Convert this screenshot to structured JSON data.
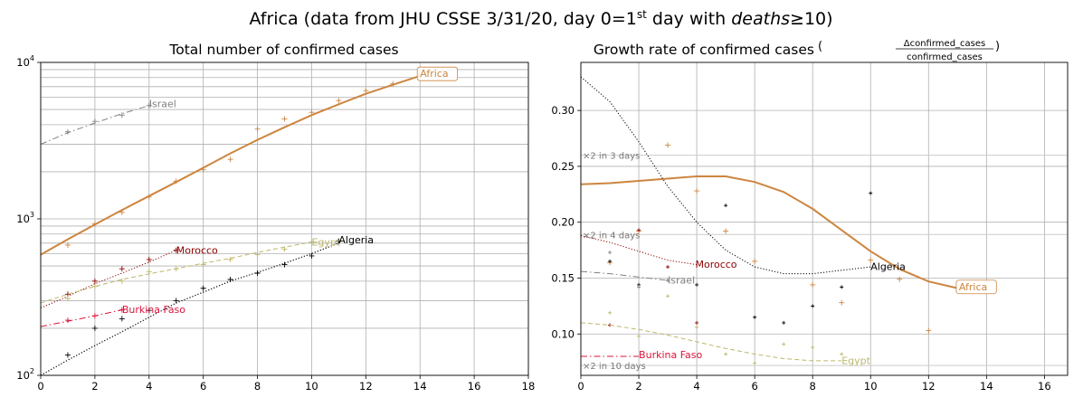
{
  "figure": {
    "suptitle_plain": "Africa (data from JHU CSSE 3/31/20, day 0=1",
    "suptitle_sup": "st",
    "suptitle_mid": " day with ",
    "suptitle_italic": "deaths",
    "suptitle_tail": "≥10)"
  },
  "colors": {
    "africa": "#cd853f",
    "algeria": "#000000",
    "egypt": "#bdb76b",
    "morocco": "#8b0000",
    "burkina": "#dc143c",
    "israel": "#808080",
    "grid": "#b0b0b0",
    "ref": "#cccccc"
  },
  "chart_data": [
    {
      "type": "line",
      "title": "Total number of confirmed cases",
      "yscale": "log",
      "xlim": [
        0,
        18
      ],
      "ylim": [
        100,
        10000
      ],
      "xticks": [
        0,
        2,
        4,
        6,
        8,
        10,
        12,
        14,
        16,
        18
      ],
      "ytick_labels": {
        "base": "10",
        "exps": [
          "2",
          "3",
          "4"
        ]
      },
      "series": [
        {
          "name": "Africa",
          "key": "africa",
          "style": "solid",
          "width": 2,
          "fit_x": [
            0,
            1,
            2,
            3,
            4,
            5,
            6,
            7,
            8,
            9,
            10,
            11,
            12,
            13,
            14
          ],
          "fit_y": [
            590,
            740,
            920,
            1140,
            1400,
            1720,
            2120,
            2620,
            3200,
            3850,
            4600,
            5400,
            6300,
            7200,
            8200
          ],
          "pts_x": [
            1,
            2,
            3,
            4,
            5,
            6,
            7,
            8,
            9,
            10,
            11,
            12,
            13,
            14
          ],
          "pts_y": [
            680,
            930,
            1100,
            1380,
            1740,
            2060,
            2400,
            3750,
            4350,
            4800,
            5700,
            6600,
            7300,
            8400
          ]
        },
        {
          "name": "Israel",
          "key": "israel",
          "style": "dashdot",
          "width": 1,
          "fit_x": [
            0,
            1,
            2,
            3,
            4
          ],
          "fit_y": [
            3000,
            3550,
            4100,
            4700,
            5300
          ],
          "pts_x": [
            1,
            2,
            3,
            4
          ],
          "pts_y": [
            3600,
            4200,
            4600,
            5300
          ]
        },
        {
          "name": "Morocco",
          "key": "morocco",
          "style": "dotted",
          "width": 1,
          "fit_x": [
            0,
            1,
            2,
            3,
            4,
            5
          ],
          "fit_y": [
            270,
            320,
            385,
            450,
            530,
            630
          ],
          "pts_x": [
            1,
            2,
            3,
            4,
            5
          ],
          "pts_y": [
            330,
            400,
            480,
            550,
            630
          ]
        },
        {
          "name": "Egypt",
          "key": "egypt",
          "style": "dashed",
          "width": 1,
          "fit_x": [
            0,
            1,
            2,
            3,
            4,
            5,
            6,
            7,
            8,
            9,
            10
          ],
          "fit_y": [
            290,
            330,
            370,
            410,
            445,
            480,
            520,
            560,
            610,
            660,
            710
          ],
          "pts_x": [
            1,
            2,
            3,
            4,
            5,
            6,
            7,
            8,
            9,
            10
          ],
          "pts_y": [
            310,
            370,
            400,
            460,
            480,
            510,
            550,
            590,
            640,
            710
          ]
        },
        {
          "name": "Algeria",
          "key": "algeria",
          "style": "dotted",
          "width": 1.2,
          "fit_x": [
            0,
            1,
            2,
            3,
            4,
            5,
            6,
            7,
            8,
            9,
            10,
            11
          ],
          "fit_y": [
            100,
            125,
            155,
            190,
            235,
            290,
            340,
            400,
            455,
            520,
            600,
            700
          ],
          "pts_x": [
            1,
            2,
            3,
            4,
            5,
            6,
            7,
            8,
            9,
            10,
            11
          ],
          "pts_y": [
            135,
            200,
            230,
            260,
            300,
            360,
            410,
            450,
            510,
            580,
            720
          ]
        },
        {
          "name": "Burkina Faso",
          "key": "burkina",
          "style": "dashdot",
          "width": 1,
          "fit_x": [
            0,
            1,
            2,
            3
          ],
          "fit_y": [
            205,
            222,
            240,
            262
          ],
          "pts_x": [
            1,
            2,
            3
          ],
          "pts_y": [
            225,
            240,
            262
          ]
        }
      ]
    },
    {
      "type": "line",
      "title_main": "Growth rate of confirmed cases",
      "title_frac_num": "Δconfirmed_cases",
      "title_frac_den": "confirmed_cases",
      "xlim": [
        0,
        16.8
      ],
      "ylim": [
        0.063,
        0.343
      ],
      "xticks": [
        0,
        2,
        4,
        6,
        8,
        10,
        12,
        14,
        16
      ],
      "yticks": [
        0.1,
        0.15,
        0.2,
        0.25,
        0.3
      ],
      "ytick_labels": [
        "0.10",
        "0.15",
        "0.20",
        "0.25",
        "0.30"
      ],
      "reference_lines": [
        {
          "label": "×2 in 3 days",
          "y": 0.26
        },
        {
          "label": "×2 in 4 days",
          "y": 0.189
        },
        {
          "label": "×2 in 10 days",
          "y": 0.0718
        }
      ],
      "series": [
        {
          "name": "Africa",
          "key": "africa",
          "style": "solid",
          "width": 2,
          "fit_x": [
            0,
            1,
            2,
            3,
            4,
            5,
            6,
            7,
            8,
            9,
            10,
            11,
            12,
            13
          ],
          "fit_y": [
            0.234,
            0.235,
            0.237,
            0.239,
            0.241,
            0.241,
            0.236,
            0.227,
            0.212,
            0.193,
            0.174,
            0.158,
            0.147,
            0.141
          ],
          "pts_x": [
            1,
            2,
            3,
            4,
            5,
            6,
            8,
            9,
            10,
            11,
            12
          ],
          "pts_y": [
            0.164,
            0.192,
            0.269,
            0.228,
            0.192,
            0.165,
            0.144,
            0.128,
            0.166,
            0.149,
            0.103
          ]
        },
        {
          "name": "Algeria",
          "key": "algeria",
          "style": "dotted",
          "width": 1,
          "fit_x": [
            0,
            1,
            2,
            3,
            4,
            5,
            6,
            7,
            8,
            9,
            10
          ],
          "fit_y": [
            0.33,
            0.308,
            0.272,
            0.232,
            0.2,
            0.175,
            0.16,
            0.154,
            0.154,
            0.157,
            0.16
          ],
          "pts_x": [
            1,
            2,
            3,
            4,
            5,
            6,
            7,
            8,
            9,
            10
          ],
          "pts_y": [
            0.165,
            0.144,
            0.148,
            0.144,
            0.215,
            0.115,
            0.11,
            0.125,
            0.142,
            0.226
          ]
        },
        {
          "name": "Morocco",
          "key": "morocco",
          "style": "dotted",
          "width": 1,
          "fit_x": [
            0,
            1,
            2,
            3,
            4
          ],
          "fit_y": [
            0.188,
            0.182,
            0.174,
            0.166,
            0.162
          ],
          "pts_x": [
            1,
            2,
            3,
            4
          ],
          "pts_y": [
            0.108,
            0.193,
            0.16,
            0.11
          ]
        },
        {
          "name": "Israel",
          "key": "israel",
          "style": "dashdot",
          "width": 1,
          "fit_x": [
            0,
            1,
            2,
            3
          ],
          "fit_y": [
            0.156,
            0.154,
            0.151,
            0.148
          ],
          "pts_x": [
            1,
            2,
            3
          ],
          "pts_y": [
            0.173,
            0.142,
            0.148
          ]
        },
        {
          "name": "Egypt",
          "key": "egypt",
          "style": "dashed",
          "width": 1,
          "fit_x": [
            0,
            1,
            2,
            3,
            4,
            5,
            6,
            7,
            8,
            9
          ],
          "fit_y": [
            0.11,
            0.108,
            0.104,
            0.099,
            0.093,
            0.087,
            0.082,
            0.078,
            0.076,
            0.076
          ],
          "pts_x": [
            1,
            2,
            3,
            4,
            5,
            6,
            7,
            8,
            9
          ],
          "pts_y": [
            0.119,
            0.098,
            0.134,
            0.106,
            0.082,
            0.074,
            0.091,
            0.088,
            0.082
          ]
        },
        {
          "name": "Burkina Faso",
          "key": "burkina",
          "style": "dashdot",
          "width": 1,
          "fit_x": [
            0,
            1,
            2
          ],
          "fit_y": [
            0.08,
            0.08,
            0.08
          ],
          "pts_x": [],
          "pts_y": []
        }
      ]
    }
  ]
}
